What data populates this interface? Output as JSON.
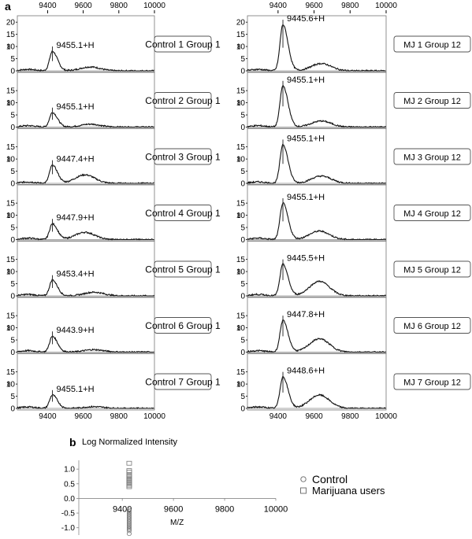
{
  "figure": {
    "panel_a_label": "a",
    "panel_b_label": "b"
  },
  "chart_data": [
    {
      "type": "line",
      "panel": "a",
      "x_ticks": [
        9400,
        9600,
        9800,
        10000
      ],
      "x_range": [
        9230,
        10000
      ],
      "y_ticks": [
        0,
        5,
        10,
        15,
        20
      ],
      "y_range": [
        0,
        22
      ],
      "y_marker": "8",
      "columns": [
        {
          "column": "left",
          "spectra": [
            {
              "label": "Control 1 Group 1",
              "peak_label": "9455.1+H",
              "peak_x": 9427,
              "peak_height": 8,
              "bg_hump_x": 9640,
              "bg_hump_height": 1.6
            },
            {
              "label": "Control 2 Group 1",
              "peak_label": "9455.1+H",
              "peak_x": 9427,
              "peak_height": 6,
              "bg_hump_x": 9640,
              "bg_hump_height": 1.2
            },
            {
              "label": "Control 3 Group 1",
              "peak_label": "9447.4+H",
              "peak_x": 9427,
              "peak_height": 7.5,
              "bg_hump_x": 9610,
              "bg_hump_height": 3.5
            },
            {
              "label": "Control 4 Group 1",
              "peak_label": "9447.9+H",
              "peak_x": 9427,
              "peak_height": 6.5,
              "bg_hump_x": 9610,
              "bg_hump_height": 3.0
            },
            {
              "label": "Control 5 Group 1",
              "peak_label": "9453.4+H",
              "peak_x": 9427,
              "peak_height": 6.5,
              "bg_hump_x": 9660,
              "bg_hump_height": 1.5
            },
            {
              "label": "Control 6 Group 1",
              "peak_label": "9443.9+H",
              "peak_x": 9427,
              "peak_height": 6.5,
              "bg_hump_x": 9660,
              "bg_hump_height": 1.0
            },
            {
              "label": "Control 7 Group 1",
              "peak_label": "9455.1+H",
              "peak_x": 9427,
              "peak_height": 5.5,
              "bg_hump_x": 9660,
              "bg_hump_height": 0.7
            }
          ]
        },
        {
          "column": "right",
          "spectra": [
            {
              "label": "MJ 1 Group 12",
              "peak_label": "9445.6+H",
              "peak_x": 9427,
              "peak_height": 19,
              "bg_hump_x": 9640,
              "bg_hump_height": 3.0
            },
            {
              "label": "MJ 2 Group 12",
              "peak_label": "9455.1+H",
              "peak_x": 9427,
              "peak_height": 17,
              "bg_hump_x": 9640,
              "bg_hump_height": 2.5
            },
            {
              "label": "MJ 3 Group 12",
              "peak_label": "9455.1+H",
              "peak_x": 9427,
              "peak_height": 16,
              "bg_hump_x": 9640,
              "bg_hump_height": 3.0
            },
            {
              "label": "MJ 4 Group 12",
              "peak_label": "9455.1+H",
              "peak_x": 9427,
              "peak_height": 15,
              "bg_hump_x": 9630,
              "bg_hump_height": 3.5
            },
            {
              "label": "MJ 5 Group 12",
              "peak_label": "9445.5+H",
              "peak_x": 9427,
              "peak_height": 13,
              "bg_hump_x": 9630,
              "bg_hump_height": 6.0
            },
            {
              "label": "MJ 6 Group 12",
              "peak_label": "9447.8+H",
              "peak_x": 9427,
              "peak_height": 13,
              "bg_hump_x": 9630,
              "bg_hump_height": 5.5
            },
            {
              "label": "MJ 7 Group 12",
              "peak_label": "9448.6+H",
              "peak_x": 9427,
              "peak_height": 13,
              "bg_hump_x": 9630,
              "bg_hump_height": 5.5
            }
          ]
        }
      ]
    },
    {
      "type": "scatter",
      "panel": "b",
      "ylabel": "Log Normalized Intensity",
      "xlabel": "M/Z",
      "x_ticks": [
        9400,
        9600,
        9800,
        10000
      ],
      "x_range": [
        9230,
        10000
      ],
      "y_ticks": [
        -1.0,
        -0.5,
        0.0,
        0.5,
        1.0
      ],
      "y_range": [
        -1.25,
        1.3
      ],
      "series": [
        {
          "name": "Control",
          "marker": "circle",
          "x": [
            9427,
            9427,
            9427,
            9427,
            9427,
            9427,
            9427,
            9427,
            9427,
            9427,
            9427,
            9427,
            9427,
            9427,
            9427,
            9427
          ],
          "y": [
            -0.4,
            -0.45,
            -0.5,
            -0.55,
            -0.6,
            -0.65,
            -0.7,
            -0.75,
            -0.8,
            -0.85,
            -0.9,
            -0.95,
            -1.0,
            -1.05,
            -1.1,
            -1.2
          ]
        },
        {
          "name": "Marijuana users",
          "marker": "square",
          "x": [
            9427,
            9427,
            9427,
            9427,
            9427,
            9427,
            9427,
            9427,
            9427,
            9427,
            9427,
            9427
          ],
          "y": [
            1.2,
            0.95,
            0.9,
            0.8,
            0.75,
            0.7,
            0.65,
            0.6,
            0.55,
            0.5,
            0.45,
            0.4
          ]
        }
      ],
      "legend_position": "right"
    }
  ]
}
